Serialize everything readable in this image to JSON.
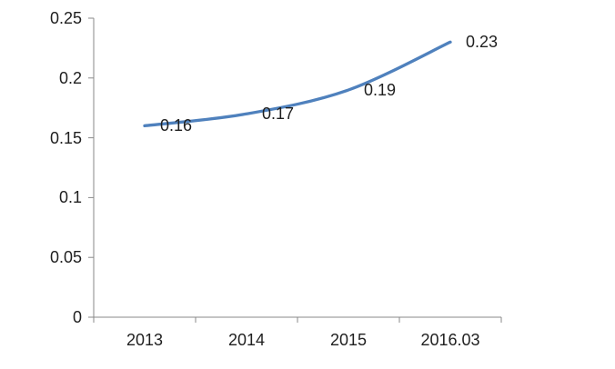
{
  "chart_data": {
    "type": "line",
    "title": "",
    "xlabel": "",
    "ylabel": "",
    "categories": [
      "2013",
      "2014",
      "2015",
      "2016.03"
    ],
    "series": [
      {
        "name": "",
        "values": [
          0.16,
          0.17,
          0.19,
          0.23
        ],
        "color": "#4F81BD"
      }
    ],
    "data_labels": [
      "0.16",
      "0.17",
      "0.19",
      "0.23"
    ],
    "data_label_position": "right",
    "y_tick_labels": [
      "0.25",
      "0.2",
      "0.15",
      "0.1",
      "0.05",
      "0"
    ],
    "ylim": [
      0,
      0.25
    ],
    "y_tick_step": 0.05,
    "grid": false,
    "legend_position": "none",
    "colors": {
      "line": "#4F81BD",
      "axis": "#898989",
      "label_text": "#1F1F1F",
      "background": "#FFFFFF"
    }
  }
}
